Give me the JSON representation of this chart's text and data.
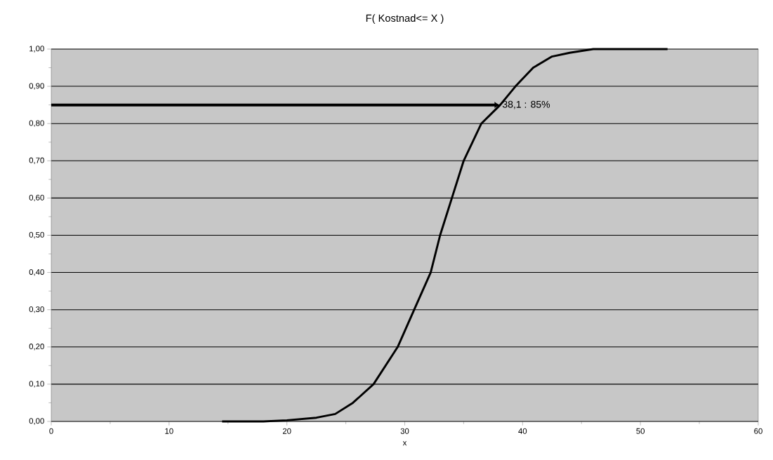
{
  "chart_data": {
    "type": "line",
    "title": "F( Kostnad<= X )",
    "xlabel": "x",
    "x": [
      14.5,
      18,
      20,
      22.5,
      24.1,
      25.6,
      27.35,
      29.4,
      30.8,
      32.2,
      33.0,
      34.0,
      35.0,
      36.5,
      38.1,
      39.4,
      40.9,
      42.5,
      44,
      46,
      52.3
    ],
    "series": [
      {
        "color": "#000000",
        "values": [
          0,
          0,
          0.003,
          0.01,
          0.02,
          0.05,
          0.1,
          0.2,
          0.3,
          0.4,
          0.5,
          0.6,
          0.7,
          0.8,
          0.85,
          0.9,
          0.95,
          0.98,
          0.99,
          1.0,
          1.0
        ]
      }
    ],
    "xlim": [
      0,
      60
    ],
    "xticks": [
      0,
      10,
      20,
      30,
      40,
      50,
      60
    ],
    "ylim": [
      0,
      1
    ],
    "yticks": [
      {
        "value": 0,
        "label": "0,00"
      },
      {
        "value": 0.1,
        "label": "0,10"
      },
      {
        "value": 0.2,
        "label": "0,20"
      },
      {
        "value": 0.3,
        "label": "0,30"
      },
      {
        "value": 0.4,
        "label": "0,40"
      },
      {
        "value": 0.5,
        "label": "0,50"
      },
      {
        "value": 0.6,
        "label": "0,60"
      },
      {
        "value": 0.7,
        "label": "0,70"
      },
      {
        "value": 0.8,
        "label": "0,80"
      },
      {
        "value": 0.9,
        "label": "0,90"
      },
      {
        "value": 1,
        "label": "1,00"
      }
    ],
    "grid": "y",
    "marker": "none",
    "line_style": "solid",
    "annotations": [
      {
        "text": "38,1 : 85%",
        "x": 38.1,
        "y": 0.85
      }
    ]
  }
}
